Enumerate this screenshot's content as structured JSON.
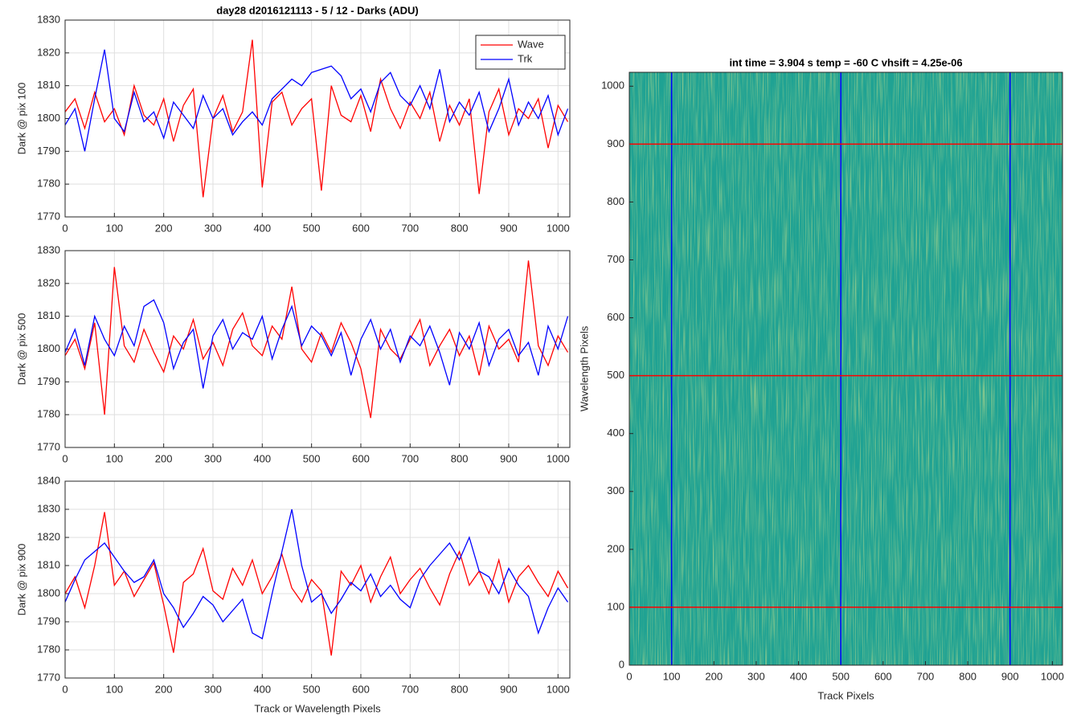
{
  "chart_data": [
    {
      "type": "line",
      "title": "day28 d2016121113 - 5 / 12 - Darks (ADU)",
      "ylabel": "Dark @ pix 100",
      "x": [
        0,
        20,
        40,
        60,
        80,
        100,
        120,
        140,
        160,
        180,
        200,
        220,
        240,
        260,
        280,
        300,
        320,
        340,
        360,
        380,
        400,
        420,
        440,
        460,
        480,
        500,
        520,
        540,
        560,
        580,
        600,
        620,
        640,
        660,
        680,
        700,
        720,
        740,
        760,
        780,
        800,
        820,
        840,
        860,
        880,
        900,
        920,
        940,
        960,
        980,
        1000,
        1020
      ],
      "series": [
        {
          "name": "Wave",
          "color": "#ff0000",
          "values": [
            1802,
            1806,
            1797,
            1808,
            1799,
            1803,
            1795,
            1810,
            1801,
            1798,
            1806,
            1793,
            1804,
            1809,
            1776,
            1800,
            1807,
            1796,
            1802,
            1824,
            1779,
            1805,
            1808,
            1798,
            1803,
            1806,
            1778,
            1810,
            1801,
            1799,
            1807,
            1796,
            1812,
            1803,
            1797,
            1805,
            1800,
            1808,
            1793,
            1804,
            1798,
            1806,
            1777,
            1802,
            1809,
            1795,
            1803,
            1800,
            1806,
            1791,
            1804,
            1799
          ]
        },
        {
          "name": "Trk",
          "color": "#0000ff",
          "values": [
            1798,
            1803,
            1790,
            1806,
            1821,
            1800,
            1796,
            1808,
            1799,
            1802,
            1794,
            1805,
            1801,
            1797,
            1807,
            1800,
            1803,
            1795,
            1799,
            1802,
            1798,
            1806,
            1809,
            1812,
            1810,
            1814,
            1815,
            1816,
            1813,
            1806,
            1809,
            1802,
            1811,
            1814,
            1807,
            1804,
            1810,
            1803,
            1815,
            1799,
            1805,
            1801,
            1808,
            1796,
            1803,
            1812,
            1798,
            1805,
            1800,
            1807,
            1795,
            1803
          ]
        }
      ],
      "xlim": [
        0,
        1024
      ],
      "ylim": [
        1770,
        1830
      ],
      "xticks": [
        0,
        100,
        200,
        300,
        400,
        500,
        600,
        700,
        800,
        900,
        1000
      ],
      "yticks": [
        1770,
        1780,
        1790,
        1800,
        1810,
        1820,
        1830
      ],
      "grid": true,
      "legend": "upper right"
    },
    {
      "type": "line",
      "ylabel": "Dark @ pix 500",
      "x": [
        0,
        20,
        40,
        60,
        80,
        100,
        120,
        140,
        160,
        180,
        200,
        220,
        240,
        260,
        280,
        300,
        320,
        340,
        360,
        380,
        400,
        420,
        440,
        460,
        480,
        500,
        520,
        540,
        560,
        580,
        600,
        620,
        640,
        660,
        680,
        700,
        720,
        740,
        760,
        780,
        800,
        820,
        840,
        860,
        880,
        900,
        920,
        940,
        960,
        980,
        1000,
        1020
      ],
      "series": [
        {
          "name": "Wave",
          "color": "#ff0000",
          "values": [
            1798,
            1803,
            1794,
            1808,
            1780,
            1825,
            1801,
            1796,
            1806,
            1799,
            1793,
            1804,
            1800,
            1809,
            1797,
            1802,
            1795,
            1806,
            1811,
            1801,
            1798,
            1807,
            1803,
            1819,
            1800,
            1796,
            1805,
            1799,
            1808,
            1802,
            1794,
            1779,
            1806,
            1800,
            1797,
            1803,
            1809,
            1795,
            1801,
            1806,
            1798,
            1804,
            1792,
            1807,
            1800,
            1803,
            1796,
            1827,
            1801,
            1795,
            1804,
            1799
          ]
        },
        {
          "name": "Trk",
          "color": "#0000ff",
          "values": [
            1799,
            1806,
            1795,
            1810,
            1803,
            1798,
            1807,
            1801,
            1813,
            1815,
            1808,
            1794,
            1802,
            1806,
            1788,
            1804,
            1809,
            1800,
            1805,
            1803,
            1810,
            1797,
            1806,
            1813,
            1801,
            1807,
            1804,
            1798,
            1805,
            1792,
            1803,
            1809,
            1800,
            1806,
            1796,
            1804,
            1801,
            1807,
            1799,
            1789,
            1805,
            1800,
            1808,
            1795,
            1803,
            1806,
            1798,
            1802,
            1792,
            1807,
            1800,
            1810
          ]
        }
      ],
      "xlim": [
        0,
        1024
      ],
      "ylim": [
        1770,
        1830
      ],
      "xticks": [
        0,
        100,
        200,
        300,
        400,
        500,
        600,
        700,
        800,
        900,
        1000
      ],
      "yticks": [
        1770,
        1780,
        1790,
        1800,
        1810,
        1820,
        1830
      ],
      "grid": true
    },
    {
      "type": "line",
      "ylabel": "Dark @ pix 900",
      "xlabel": "Track or Wavelength Pixels",
      "x": [
        0,
        20,
        40,
        60,
        80,
        100,
        120,
        140,
        160,
        180,
        200,
        220,
        240,
        260,
        280,
        300,
        320,
        340,
        360,
        380,
        400,
        420,
        440,
        460,
        480,
        500,
        520,
        540,
        560,
        580,
        600,
        620,
        640,
        660,
        680,
        700,
        720,
        740,
        760,
        780,
        800,
        820,
        840,
        860,
        880,
        900,
        920,
        940,
        960,
        980,
        1000,
        1020
      ],
      "series": [
        {
          "name": "Wave",
          "color": "#ff0000",
          "values": [
            1800,
            1806,
            1795,
            1810,
            1829,
            1803,
            1808,
            1799,
            1805,
            1811,
            1796,
            1779,
            1804,
            1807,
            1816,
            1801,
            1798,
            1809,
            1803,
            1812,
            1800,
            1806,
            1814,
            1802,
            1797,
            1805,
            1801,
            1778,
            1808,
            1803,
            1810,
            1797,
            1806,
            1813,
            1800,
            1805,
            1809,
            1802,
            1796,
            1807,
            1815,
            1803,
            1808,
            1800,
            1812,
            1797,
            1806,
            1810,
            1804,
            1799,
            1808,
            1802
          ]
        },
        {
          "name": "Trk",
          "color": "#0000ff",
          "values": [
            1797,
            1805,
            1812,
            1815,
            1818,
            1813,
            1808,
            1804,
            1806,
            1812,
            1800,
            1795,
            1788,
            1793,
            1799,
            1796,
            1790,
            1794,
            1798,
            1786,
            1784,
            1800,
            1815,
            1830,
            1810,
            1797,
            1800,
            1793,
            1798,
            1804,
            1801,
            1807,
            1799,
            1803,
            1798,
            1795,
            1805,
            1810,
            1814,
            1818,
            1812,
            1820,
            1808,
            1806,
            1800,
            1809,
            1803,
            1799,
            1786,
            1795,
            1802,
            1797
          ]
        }
      ],
      "xlim": [
        0,
        1024
      ],
      "ylim": [
        1770,
        1840
      ],
      "xticks": [
        0,
        100,
        200,
        300,
        400,
        500,
        600,
        700,
        800,
        900,
        1000
      ],
      "yticks": [
        1770,
        1780,
        1790,
        1800,
        1810,
        1820,
        1830,
        1840
      ],
      "grid": true
    },
    {
      "type": "image",
      "title": "int time = 3.904 s   temp = -60 C   vhsift = 4.25e-06",
      "xlabel": "Track Pixels",
      "ylabel": "Wavelength Pixels",
      "xlim": [
        0,
        1024
      ],
      "ylim": [
        0,
        1024
      ],
      "xticks": [
        0,
        100,
        200,
        300,
        400,
        500,
        600,
        700,
        800,
        900,
        1000
      ],
      "yticks": [
        0,
        100,
        200,
        300,
        400,
        500,
        600,
        700,
        800,
        900,
        1000
      ],
      "vlines": {
        "values": [
          100,
          500,
          900
        ],
        "color": "#0000ff"
      },
      "hlines": {
        "values": [
          100,
          500,
          900
        ],
        "color": "#ff0000"
      }
    }
  ]
}
